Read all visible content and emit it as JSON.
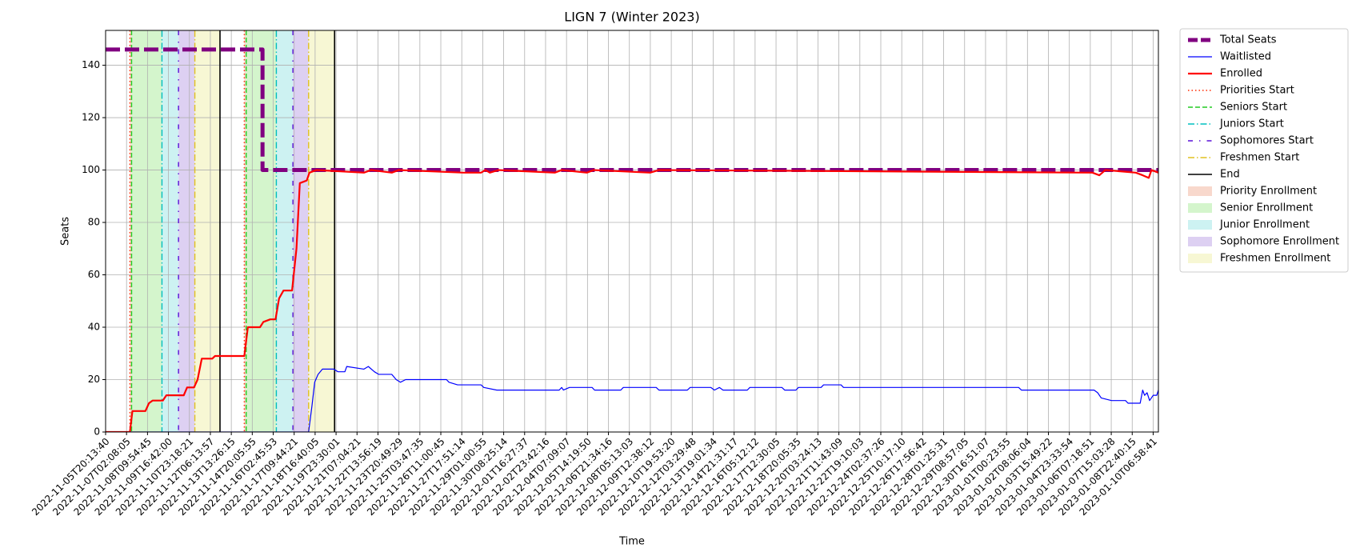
{
  "chart_data": {
    "type": "line",
    "title": "LIGN 7 (Winter 2023)",
    "x_label": "Time",
    "y_label": "Seats",
    "grid": true,
    "legend_position": "outside-right",
    "xlim": [
      0,
      50.25
    ],
    "ylim": [
      0,
      153.3
    ],
    "yticks": [
      0,
      20,
      40,
      60,
      80,
      100,
      120,
      140
    ],
    "xticks": [
      {
        "value": 0,
        "label": "2022-11-05T20:13:40"
      },
      {
        "value": 1,
        "label": "2022-11-07T02:08:05"
      },
      {
        "value": 2,
        "label": "2022-11-08T09:54:45"
      },
      {
        "value": 3,
        "label": "2022-11-09T16:42:00"
      },
      {
        "value": 4,
        "label": "2022-11-10T23:18:21"
      },
      {
        "value": 5,
        "label": "2022-11-12T06:13:57"
      },
      {
        "value": 6,
        "label": "2022-11-13T13:26:15"
      },
      {
        "value": 7,
        "label": "2022-11-14T20:05:55"
      },
      {
        "value": 8,
        "label": "2022-11-16T02:45:53"
      },
      {
        "value": 9,
        "label": "2022-11-17T09:44:21"
      },
      {
        "value": 10,
        "label": "2022-11-18T16:40:05"
      },
      {
        "value": 11,
        "label": "2022-11-19T23:30:01"
      },
      {
        "value": 12,
        "label": "2022-11-21T07:04:21"
      },
      {
        "value": 13,
        "label": "2022-11-22T13:56:19"
      },
      {
        "value": 14,
        "label": "2022-11-23T20:49:29"
      },
      {
        "value": 15,
        "label": "2022-11-25T03:47:35"
      },
      {
        "value": 16,
        "label": "2022-11-26T11:00:45"
      },
      {
        "value": 17,
        "label": "2022-11-27T17:51:14"
      },
      {
        "value": 18,
        "label": "2022-11-29T01:00:55"
      },
      {
        "value": 19,
        "label": "2022-11-30T08:25:14"
      },
      {
        "value": 20,
        "label": "2022-12-01T16:27:37"
      },
      {
        "value": 21,
        "label": "2022-12-02T23:42:16"
      },
      {
        "value": 22,
        "label": "2022-12-04T07:09:07"
      },
      {
        "value": 23,
        "label": "2022-12-05T14:19:50"
      },
      {
        "value": 24,
        "label": "2022-12-06T21:34:16"
      },
      {
        "value": 25,
        "label": "2022-12-08T05:13:03"
      },
      {
        "value": 26,
        "label": "2022-12-09T12:38:12"
      },
      {
        "value": 27,
        "label": "2022-12-10T19:53:20"
      },
      {
        "value": 28,
        "label": "2022-12-12T03:29:48"
      },
      {
        "value": 29,
        "label": "2022-12-13T19:01:34"
      },
      {
        "value": 30,
        "label": "2022-12-14T21:31:17"
      },
      {
        "value": 31,
        "label": "2022-12-16T05:12:12"
      },
      {
        "value": 32,
        "label": "2022-12-17T12:30:05"
      },
      {
        "value": 33,
        "label": "2022-12-18T20:05:35"
      },
      {
        "value": 34,
        "label": "2022-12-20T03:24:13"
      },
      {
        "value": 35,
        "label": "2022-12-21T11:43:09"
      },
      {
        "value": 36,
        "label": "2022-12-22T19:10:03"
      },
      {
        "value": 37,
        "label": "2022-12-24T02:37:26"
      },
      {
        "value": 38,
        "label": "2022-12-25T10:17:10"
      },
      {
        "value": 39,
        "label": "2022-12-26T17:56:42"
      },
      {
        "value": 40,
        "label": "2022-12-28T01:25:31"
      },
      {
        "value": 41,
        "label": "2022-12-29T08:57:05"
      },
      {
        "value": 42,
        "label": "2022-12-30T16:51:07"
      },
      {
        "value": 43,
        "label": "2023-01-01T00:23:55"
      },
      {
        "value": 44,
        "label": "2023-01-02T08:06:04"
      },
      {
        "value": 45,
        "label": "2023-01-03T15:49:22"
      },
      {
        "value": 46,
        "label": "2023-01-04T23:33:54"
      },
      {
        "value": 47,
        "label": "2023-01-06T07:18:51"
      },
      {
        "value": 48,
        "label": "2023-01-07T15:03:28"
      },
      {
        "value": 49,
        "label": "2023-01-08T22:40:15"
      },
      {
        "value": 50,
        "label": "2023-01-10T06:58:41"
      }
    ],
    "series": [
      {
        "name": "Total Seats",
        "color": "#800080",
        "style": "dashed",
        "width": 5,
        "x": [
          0,
          7.49,
          7.49,
          50.25
        ],
        "values": [
          146,
          146,
          100,
          100
        ]
      },
      {
        "name": "Waitlisted",
        "color": "#0000ff",
        "style": "solid",
        "width": 1.2,
        "x": [
          0,
          9.69,
          9.85,
          9.98,
          10.14,
          10.35,
          10.89,
          11.09,
          11.42,
          11.51,
          12.33,
          12.54,
          12.83,
          13.04,
          13.66,
          13.87,
          14.07,
          14.32,
          16.27,
          16.39,
          16.8,
          17.92,
          18.05,
          18.67,
          21.65,
          21.77,
          21.85,
          22.14,
          23.22,
          23.34,
          24.59,
          24.71,
          26.28,
          26.41,
          27.77,
          27.9,
          28.89,
          29.06,
          29.3,
          29.47,
          30.63,
          30.75,
          32.28,
          32.41,
          32.95,
          33.07,
          34.15,
          34.27,
          35.1,
          35.22,
          43.58,
          43.71,
          47.18,
          47.35,
          47.52,
          48.01,
          48.68,
          48.8,
          49.38,
          49.5,
          49.59,
          49.71,
          49.83,
          50.0,
          50.17,
          50.25
        ],
        "values": [
          0,
          0,
          10,
          19,
          22,
          24,
          24,
          23,
          23,
          25,
          24,
          25,
          23,
          22,
          22,
          20,
          19,
          20,
          20,
          19,
          18,
          18,
          17,
          16,
          16,
          17,
          16,
          17,
          17,
          16,
          16,
          17,
          17,
          16,
          16,
          17,
          17,
          16,
          17,
          16,
          16,
          17,
          17,
          16,
          16,
          17,
          17,
          18,
          18,
          17,
          17,
          16,
          16,
          15,
          13,
          12,
          12,
          11,
          11,
          16,
          14,
          15,
          12,
          14,
          14,
          16
        ]
      },
      {
        "name": "Enrolled",
        "color": "#ff0000",
        "style": "solid",
        "width": 2.2,
        "x": [
          0,
          1.16,
          1.28,
          1.9,
          2.07,
          2.24,
          2.73,
          2.9,
          3.73,
          3.89,
          4.22,
          4.39,
          4.59,
          5.09,
          5.22,
          6.62,
          6.79,
          7.37,
          7.53,
          7.86,
          8.11,
          8.28,
          8.49,
          8.9,
          9.11,
          9.27,
          9.6,
          9.73,
          10.06,
          12.33,
          12.67,
          13.66,
          13.99,
          17.09,
          17.92,
          18.13,
          18.34,
          18.75,
          21.44,
          21.77,
          22.97,
          23.3,
          25.99,
          26.41,
          47.1,
          47.43,
          47.72,
          49.17,
          49.5,
          49.79,
          49.92,
          50.25
        ],
        "values": [
          0,
          0,
          8,
          8,
          11,
          12,
          12,
          14,
          14,
          17,
          17,
          20,
          28,
          28,
          29,
          29,
          40,
          40,
          42,
          43,
          43,
          51,
          54,
          54,
          70,
          95,
          96,
          99,
          100,
          99,
          100,
          99,
          100,
          99,
          99,
          100,
          99,
          100,
          99,
          100,
          99,
          100,
          99,
          100,
          99,
          98,
          100,
          99,
          98,
          97,
          100,
          99
        ]
      }
    ],
    "markers": [
      {
        "name": "Priorities Start",
        "color": "#ff2a00",
        "style": "dotted",
        "x": [
          1.16,
          6.62
        ]
      },
      {
        "name": "Seniors Start",
        "color": "#22cc22",
        "style": "dashed",
        "x": [
          1.24,
          6.71
        ]
      },
      {
        "name": "Juniors Start",
        "color": "#00bfbf",
        "style": "dashdot",
        "x": [
          2.69,
          8.15
        ]
      },
      {
        "name": "Sophomores Start",
        "color": "#5a10d8",
        "style": "loosedashdot",
        "x": [
          3.48,
          8.94
        ]
      },
      {
        "name": "Freshmen Start",
        "color": "#e0c020",
        "style": "dashdot",
        "x": [
          4.26,
          9.69
        ]
      },
      {
        "name": "End",
        "color": "#000000",
        "style": "solid",
        "x": [
          5.46,
          10.93
        ]
      }
    ],
    "spans": [
      {
        "name": "Priority Enrollment",
        "color": "#f8d8cc",
        "ranges": [
          [
            1.16,
            1.24
          ],
          [
            6.62,
            6.71
          ]
        ]
      },
      {
        "name": "Senior Enrollment",
        "color": "#d4f5cc",
        "ranges": [
          [
            1.24,
            2.69
          ],
          [
            6.71,
            8.15
          ]
        ]
      },
      {
        "name": "Junior Enrollment",
        "color": "#cdf2f2",
        "ranges": [
          [
            2.69,
            3.48
          ],
          [
            8.15,
            8.94
          ]
        ]
      },
      {
        "name": "Sophomore Enrollment",
        "color": "#ddd0f2",
        "ranges": [
          [
            3.48,
            4.26
          ],
          [
            8.94,
            9.69
          ]
        ]
      },
      {
        "name": "Freshmen Enrollment",
        "color": "#f7f7d4",
        "ranges": [
          [
            4.26,
            5.46
          ],
          [
            9.69,
            10.93
          ]
        ]
      }
    ]
  }
}
